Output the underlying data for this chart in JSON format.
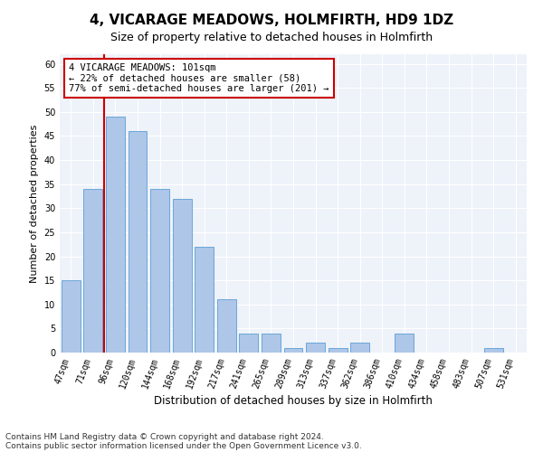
{
  "title": "4, VICARAGE MEADOWS, HOLMFIRTH, HD9 1DZ",
  "subtitle": "Size of property relative to detached houses in Holmfirth",
  "xlabel": "Distribution of detached houses by size in Holmfirth",
  "ylabel": "Number of detached properties",
  "categories": [
    "47sqm",
    "71sqm",
    "96sqm",
    "120sqm",
    "144sqm",
    "168sqm",
    "192sqm",
    "217sqm",
    "241sqm",
    "265sqm",
    "289sqm",
    "313sqm",
    "337sqm",
    "362sqm",
    "386sqm",
    "410sqm",
    "434sqm",
    "458sqm",
    "483sqm",
    "507sqm",
    "531sqm"
  ],
  "values": [
    15,
    34,
    49,
    46,
    34,
    32,
    22,
    11,
    4,
    4,
    1,
    2,
    1,
    2,
    0,
    4,
    0,
    0,
    0,
    1,
    0
  ],
  "bar_color": "#aec6e8",
  "bar_edge_color": "#5a9fd4",
  "vline_color": "#cc0000",
  "ylim": [
    0,
    62
  ],
  "yticks": [
    0,
    5,
    10,
    15,
    20,
    25,
    30,
    35,
    40,
    45,
    50,
    55,
    60
  ],
  "annotation_text": "4 VICARAGE MEADOWS: 101sqm\n← 22% of detached houses are smaller (58)\n77% of semi-detached houses are larger (201) →",
  "annotation_box_color": "#ffffff",
  "annotation_box_edge": "#cc0000",
  "footnote1": "Contains HM Land Registry data © Crown copyright and database right 2024.",
  "footnote2": "Contains public sector information licensed under the Open Government Licence v3.0.",
  "background_color": "#eef2f9",
  "title_fontsize": 11,
  "subtitle_fontsize": 9,
  "xlabel_fontsize": 8.5,
  "ylabel_fontsize": 8,
  "tick_fontsize": 7,
  "annot_fontsize": 7.5,
  "footnote_fontsize": 6.5
}
